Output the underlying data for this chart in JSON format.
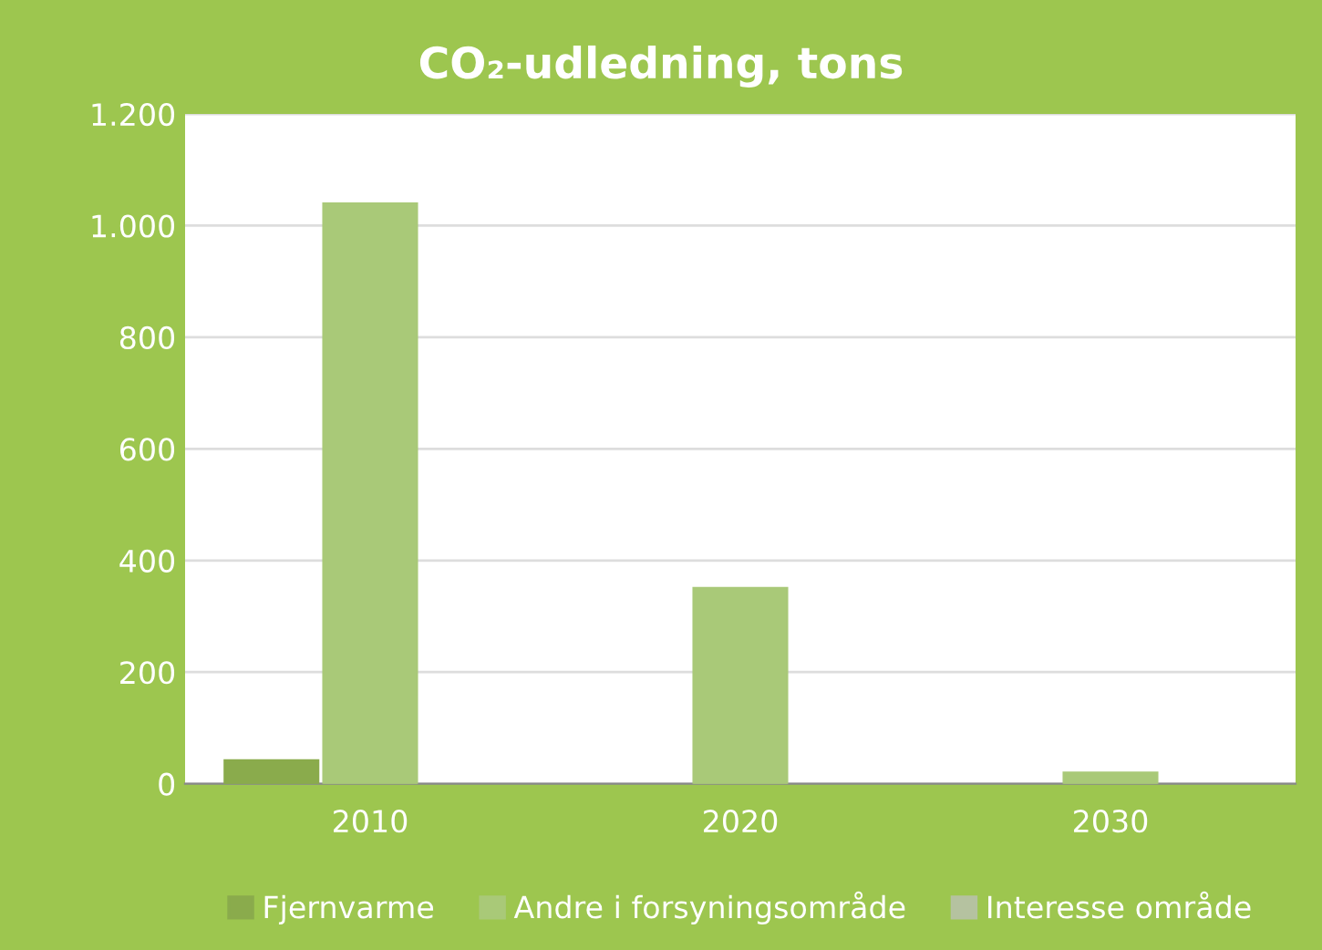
{
  "chart_data": {
    "type": "bar",
    "title": "CO₂-udledning, tons",
    "categories": [
      "2010",
      "2020",
      "2030"
    ],
    "series": [
      {
        "name": "Fjernvarme",
        "color": "#8aab4c",
        "values": [
          42,
          null,
          null
        ]
      },
      {
        "name": "Andre i forsyningsområde",
        "color": "#a9c978",
        "values": [
          1040,
          351,
          20
        ]
      },
      {
        "name": "Interesse område",
        "color": "#b5c2a0",
        "values": [
          null,
          null,
          null
        ]
      }
    ],
    "ylim": [
      0,
      1200
    ],
    "yticks": [
      {
        "value": 0,
        "label": "0"
      },
      {
        "value": 200,
        "label": "200"
      },
      {
        "value": 400,
        "label": "400"
      },
      {
        "value": 600,
        "label": "600"
      },
      {
        "value": 800,
        "label": "800"
      },
      {
        "value": 1000,
        "label": "1.000"
      },
      {
        "value": 1200,
        "label": "1.200"
      }
    ],
    "grid": "y",
    "legend": "bottom"
  }
}
